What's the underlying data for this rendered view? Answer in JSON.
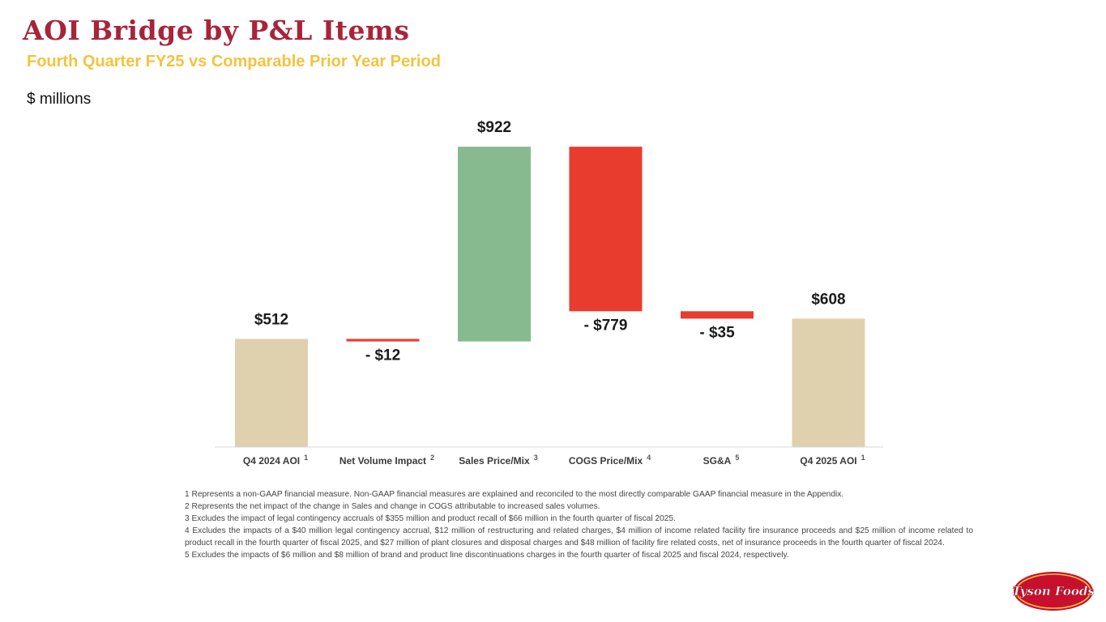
{
  "header": {
    "title": "AOI Bridge by P&L Items",
    "subtitle": "Fourth Quarter FY25 vs Comparable Prior Year Period",
    "units": "$ millions"
  },
  "colors": {
    "total": "#dfd0ae",
    "increase": "#88ba8f",
    "decrease": "#e83c2f",
    "title": "#a8243a",
    "subtitle": "#f3c33f"
  },
  "chart_data": {
    "type": "bar",
    "subtype": "waterfall",
    "title": "",
    "xlabel": "",
    "ylabel": "$ millions",
    "categories": [
      "Q4 2024 AOI",
      "Net Volume Impact",
      "Sales Price/Mix",
      "COGS Price/Mix",
      "SG&A",
      "Q4 2025 AOI"
    ],
    "footnote_refs": [
      "1",
      "2",
      "3",
      "4",
      "5",
      "1"
    ],
    "values": [
      512,
      -12,
      922,
      -779,
      -35,
      608
    ],
    "kinds": [
      "total",
      "decrease",
      "increase",
      "decrease",
      "decrease",
      "total"
    ],
    "data_labels": [
      "$512",
      "- $12",
      "$922",
      "- $779",
      "- $35",
      "$608"
    ],
    "ylim": [
      0,
      1500
    ],
    "grid": false,
    "legend": "none"
  },
  "footnotes": [
    "1 Represents a non-GAAP financial measure. Non-GAAP financial measures are explained and reconciled to the most directly comparable GAAP financial measure in the Appendix.",
    "2 Represents the net impact of the change in Sales and change in COGS attributable to increased sales volumes.",
    "3 Excludes the impact of legal contingency accruals of $355 million and product recall of $66 million in the fourth quarter of fiscal 2025.",
    "4 Excludes the impacts of a $40  million legal contingency accrual, $12 million of restructuring and related charges, $4 million of income related facility fire insurance proceeds and $25 million of income related to product recall in the fourth quarter of fiscal 2025, and $27 million of plant closures and disposal charges and $48 million of facility fire related costs, net of insurance proceeds in the fourth quarter of fiscal 2024.",
    "5 Excludes the impacts of $6 million and $8 million of brand and product line discontinuations charges in the fourth quarter of fiscal 2025 and fiscal 2024, respectively."
  ],
  "logo": {
    "text": "Tyson Foods"
  }
}
